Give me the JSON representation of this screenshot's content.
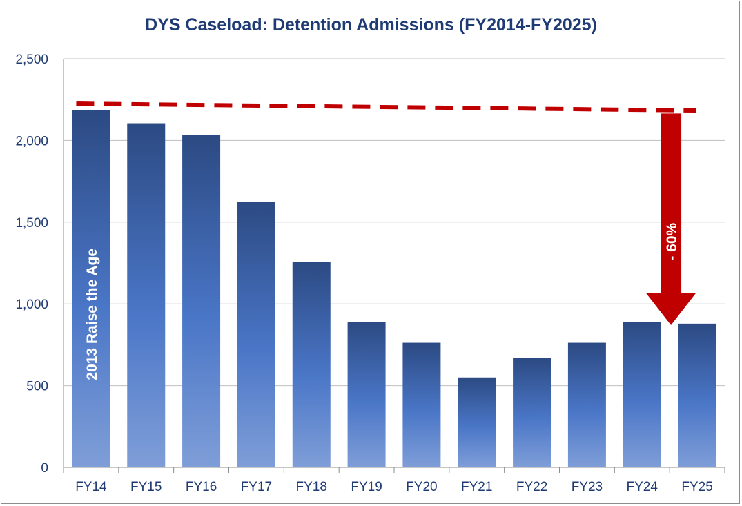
{
  "chart_data": {
    "type": "bar",
    "title": "DYS Caseload: Detention Admissions (FY2014-FY2025)",
    "categories": [
      "FY14",
      "FY15",
      "FY16",
      "FY17",
      "FY18",
      "FY19",
      "FY20",
      "FY21",
      "FY22",
      "FY23",
      "FY24",
      "FY25"
    ],
    "values": [
      2185,
      2105,
      2032,
      1622,
      1256,
      891,
      762,
      550,
      668,
      762,
      889,
      879
    ],
    "ylim": [
      0,
      2500
    ],
    "yticks": [
      0,
      500,
      1000,
      1500,
      2000,
      2500
    ],
    "ytick_labels": [
      "0",
      "500",
      "1,000",
      "1,500",
      "2,000",
      "2,500"
    ],
    "grid": true,
    "legend": "none",
    "annotations": {
      "bar_text": "2013 Raise the Age",
      "arrow_text": "- 60%",
      "reference_line_value": 2200
    },
    "colors": {
      "bar_top": "#2c4a83",
      "bar_mid": "#4a76c7",
      "bar_bottom": "#7f9ed8",
      "dashed_line": "#c00000",
      "arrow": "#c00000",
      "title": "#1f3b73",
      "grid": "#bfbfbf"
    }
  }
}
